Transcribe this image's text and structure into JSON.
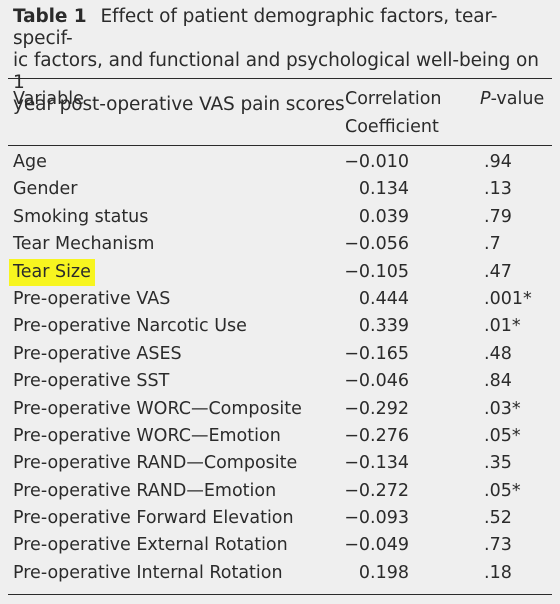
{
  "caption": {
    "label": "Table 1",
    "line1": "Effect of patient demographic factors, tear- specif-",
    "line2": "ic factors, and functional and psychological well-being on 1",
    "line3": "year post-operative VAS pain scores"
  },
  "headers": {
    "variable": "Variable",
    "corr_line1": "Correlation",
    "corr_line2": "Coefficient",
    "p_italic": "P",
    "p_rest": "-value"
  },
  "rows": [
    {
      "variable": "Age",
      "corr": "−0.010",
      "p": ".94",
      "highlight": false
    },
    {
      "variable": "Gender",
      "corr": "0.134",
      "p": ".13",
      "highlight": false
    },
    {
      "variable": "Smoking status",
      "corr": "0.039",
      "p": ".79",
      "highlight": false
    },
    {
      "variable": "Tear Mechanism",
      "corr": "−0.056",
      "p": ".7",
      "highlight": false
    },
    {
      "variable": "Tear Size",
      "corr": "−0.105",
      "p": ".47",
      "highlight": true
    },
    {
      "variable": "Pre-operative VAS",
      "corr": "0.444",
      "p": ".001*",
      "highlight": false
    },
    {
      "variable": "Pre-operative Narcotic Use",
      "corr": "0.339",
      "p": ".01*",
      "highlight": false
    },
    {
      "variable": "Pre-operative ASES",
      "corr": "−0.165",
      "p": ".48",
      "highlight": false
    },
    {
      "variable": "Pre-operative SST",
      "corr": "−0.046",
      "p": ".84",
      "highlight": false
    },
    {
      "variable": "Pre-operative WORC—Composite",
      "corr": "−0.292",
      "p": ".03*",
      "highlight": false
    },
    {
      "variable": "Pre-operative WORC—Emotion",
      "corr": "−0.276",
      "p": ".05*",
      "highlight": false
    },
    {
      "variable": "Pre-operative RAND—Composite",
      "corr": "−0.134",
      "p": ".35",
      "highlight": false
    },
    {
      "variable": "Pre-operative RAND—Emotion",
      "corr": "−0.272",
      "p": ".05*",
      "highlight": false
    },
    {
      "variable": "Pre-operative Forward Elevation",
      "corr": "−0.093",
      "p": ".52",
      "highlight": false
    },
    {
      "variable": "Pre-operative External Rotation",
      "corr": "−0.049",
      "p": ".73",
      "highlight": false
    },
    {
      "variable": "Pre-operative Internal Rotation",
      "corr": "0.198",
      "p": ".18",
      "highlight": false
    }
  ],
  "colors": {
    "highlight": "#f7f51f",
    "background": "#efefef",
    "text": "#2b2b2b"
  }
}
